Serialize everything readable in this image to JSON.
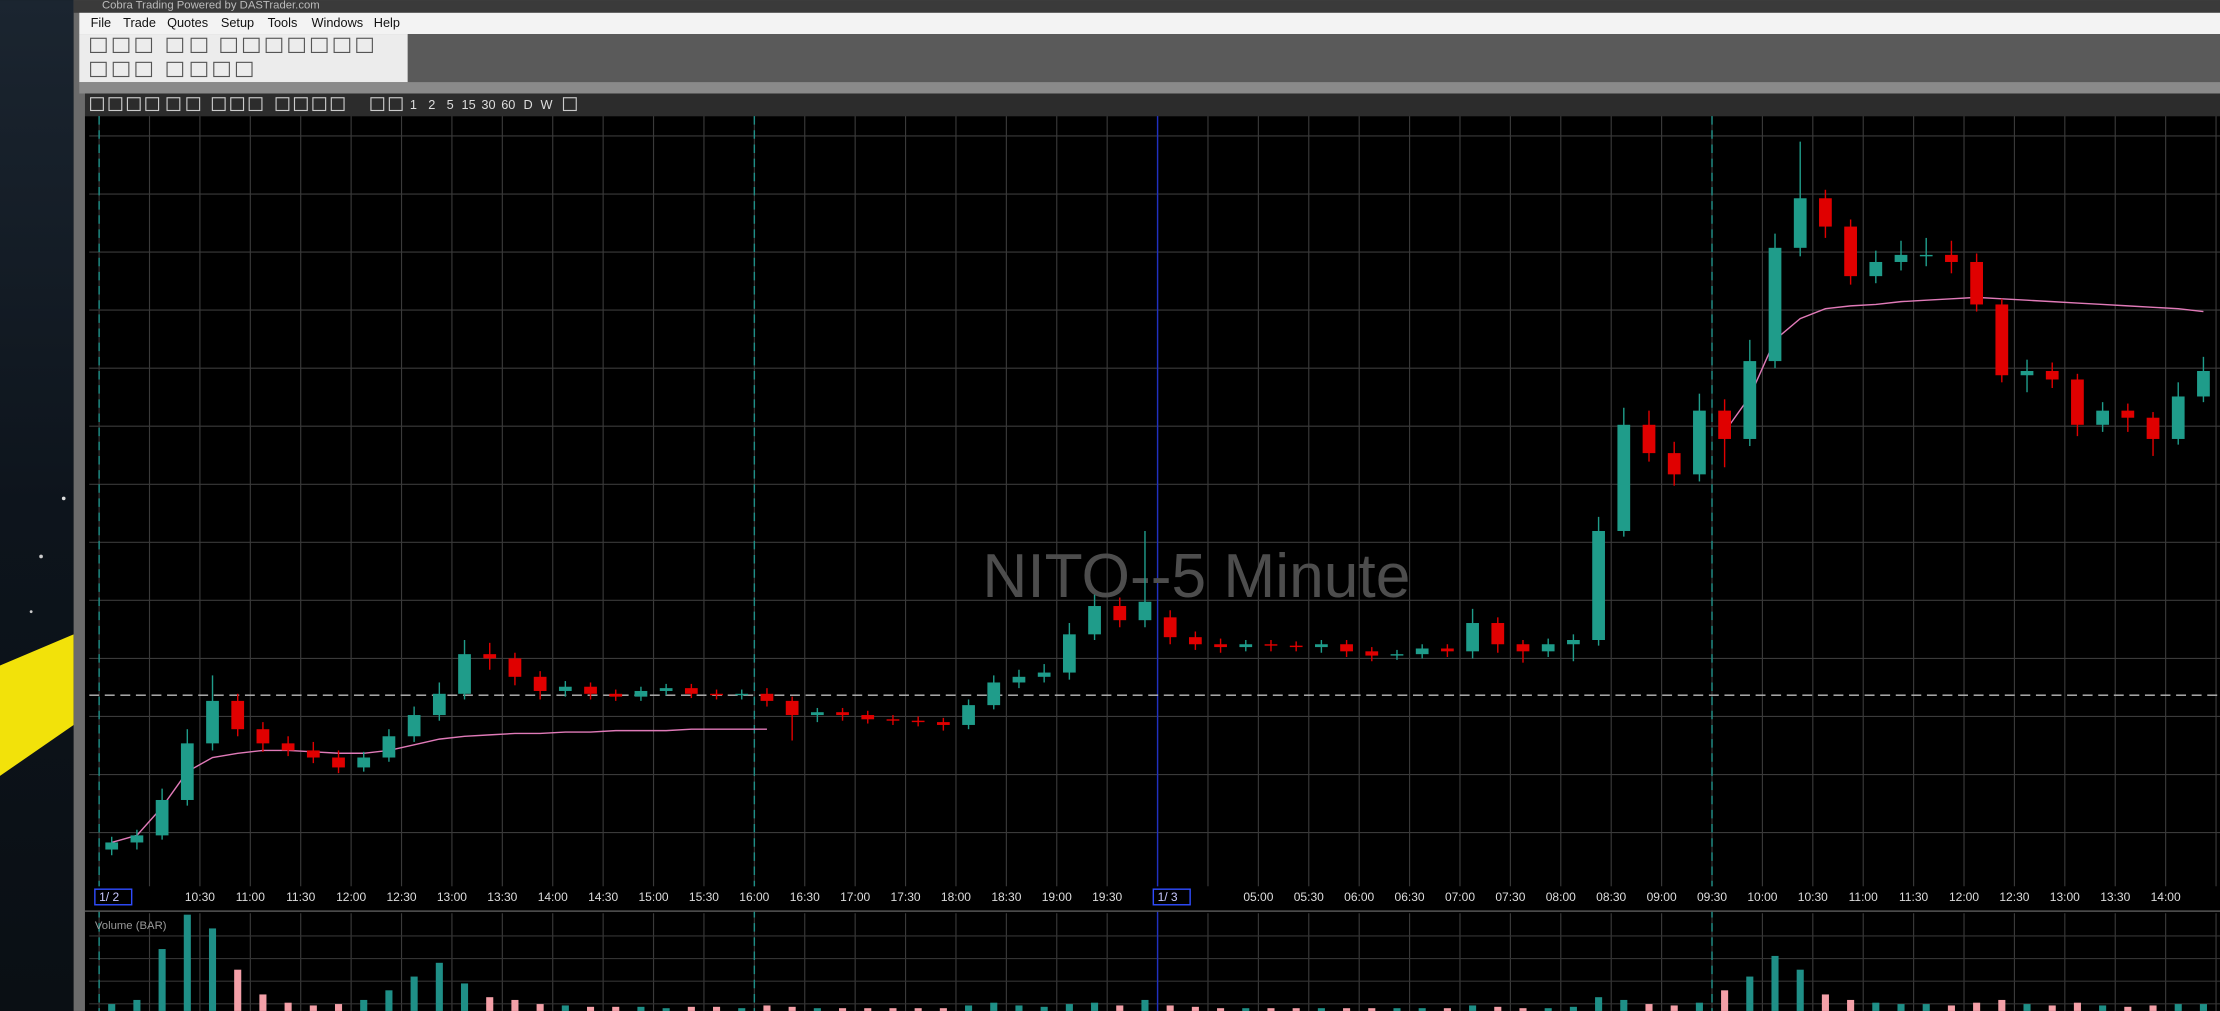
{
  "window": {
    "title": "Cobra Trading Powered by DASTrader.com"
  },
  "menu": [
    "File",
    "Trade",
    "Quotes",
    "Setup",
    "Tools",
    "Windows",
    "Help"
  ],
  "chart_toolbar": {
    "intervals": [
      "1",
      "2",
      "5",
      "15",
      "30",
      "60",
      "D",
      "W"
    ]
  },
  "chart_data": {
    "type": "candlestick",
    "title": "NITO--5 Minute",
    "categories": [
      "1/ 2",
      null,
      null,
      null,
      "10:30",
      null,
      "11:00",
      null,
      "11:30",
      null,
      "12:00",
      null,
      "12:30",
      null,
      "13:00",
      null,
      "13:30",
      null,
      "14:00",
      null,
      "14:30",
      null,
      "15:00",
      null,
      "15:30",
      null,
      "16:00",
      null,
      "16:30",
      null,
      "17:00",
      null,
      "17:30",
      null,
      "18:00",
      null,
      "18:30",
      null,
      "19:00",
      null,
      "19:30",
      null,
      "1/ 3",
      null,
      null,
      null,
      "05:00",
      null,
      "05:30",
      null,
      "06:00",
      null,
      "06:30",
      null,
      "07:00",
      null,
      "07:30",
      null,
      "08:00",
      null,
      "08:30",
      null,
      "09:00",
      null,
      "09:30",
      null,
      "10:00",
      null,
      "10:30",
      null,
      "11:00",
      null,
      "11:30",
      null,
      "12:00",
      null,
      "12:30",
      null,
      "13:00",
      null,
      "13:30",
      null,
      "14:00",
      null
    ],
    "open": [
      26,
      31,
      36,
      61,
      101,
      131,
      111,
      101,
      96,
      91,
      84,
      91,
      106,
      121,
      136,
      164,
      161,
      148,
      138,
      141,
      136,
      134,
      138,
      140,
      136,
      135,
      136,
      131,
      121,
      123,
      121,
      118,
      117,
      116,
      114,
      128,
      144,
      148,
      151,
      178,
      198,
      188,
      190,
      176,
      171,
      169,
      171,
      170,
      169,
      171,
      166,
      163,
      164,
      168,
      166,
      186,
      171,
      166,
      171,
      174,
      251,
      326,
      306,
      291,
      336,
      316,
      371,
      451,
      486,
      466,
      431,
      441,
      446,
      446,
      441,
      411,
      361,
      364,
      358,
      326,
      336,
      331,
      316,
      346
    ],
    "high": [
      35,
      40,
      69,
      111,
      149,
      136,
      116,
      106,
      102,
      96,
      95,
      111,
      127,
      144,
      174,
      172,
      165,
      152,
      145,
      144,
      139,
      141,
      143,
      143,
      139,
      139,
      140,
      134,
      126,
      126,
      124,
      121,
      120,
      119,
      132,
      149,
      153,
      157,
      186,
      206,
      204,
      251,
      195,
      180,
      175,
      174,
      174,
      173,
      174,
      174,
      169,
      167,
      171,
      171,
      196,
      190,
      174,
      175,
      178,
      261,
      338,
      336,
      314,
      348,
      344,
      386,
      461,
      526,
      492,
      471,
      449,
      456,
      458,
      456,
      447,
      415,
      372,
      370,
      362,
      342,
      341,
      335,
      356,
      374
    ],
    "low": [
      22,
      26,
      33,
      57,
      96,
      106,
      95,
      92,
      87,
      80,
      81,
      88,
      102,
      117,
      132,
      153,
      142,
      132,
      134,
      132,
      131,
      131,
      135,
      133,
      132,
      132,
      127,
      103,
      116,
      117,
      115,
      114,
      113,
      110,
      111,
      125,
      140,
      144,
      146,
      174,
      183,
      183,
      171,
      167,
      165,
      166,
      166,
      166,
      165,
      162,
      159,
      160,
      161,
      162,
      161,
      165,
      158,
      162,
      159,
      170,
      247,
      300,
      283,
      286,
      296,
      311,
      366,
      445,
      458,
      425,
      426,
      435,
      438,
      433,
      406,
      356,
      349,
      352,
      318,
      321,
      321,
      304,
      312,
      342
    ],
    "close": [
      31,
      36,
      61,
      101,
      131,
      111,
      101,
      96,
      91,
      84,
      91,
      106,
      121,
      136,
      164,
      161,
      148,
      138,
      141,
      136,
      134,
      138,
      140,
      136,
      135,
      136,
      131,
      121,
      123,
      121,
      118,
      117,
      116,
      114,
      128,
      144,
      148,
      151,
      178,
      198,
      188,
      201,
      176,
      171,
      169,
      171,
      170,
      169,
      171,
      166,
      163,
      164,
      168,
      166,
      186,
      171,
      166,
      171,
      174,
      251,
      326,
      306,
      291,
      336,
      316,
      371,
      451,
      486,
      466,
      431,
      441,
      446,
      446,
      441,
      411,
      361,
      364,
      358,
      326,
      336,
      331,
      316,
      346,
      364
    ],
    "ylim": [
      0,
      544
    ],
    "up_color": "#1f9c8a",
    "down_color": "#e00000",
    "reference_level": 135,
    "vwap": {
      "color": "#e07ab8",
      "values": [
        31,
        36,
        56,
        81,
        91,
        94,
        96,
        96,
        95,
        94,
        94,
        96,
        100,
        104,
        106,
        107,
        108,
        108,
        109,
        109,
        110,
        110,
        110,
        111,
        111,
        111,
        111,
        null,
        null,
        null,
        null,
        null,
        null,
        null,
        null,
        null,
        null,
        null,
        null,
        null,
        null,
        null,
        null,
        null,
        null,
        null,
        null,
        null,
        null,
        null,
        null,
        null,
        null,
        null,
        null,
        null,
        null,
        null,
        null,
        null,
        null,
        null,
        null,
        null,
        321,
        346,
        386,
        401,
        408,
        410,
        411,
        413,
        414,
        415,
        416,
        415,
        414,
        413,
        412,
        411,
        410,
        409,
        408,
        406
      ]
    },
    "volume": {
      "title": "Volume (BAR)",
      "up_color": "#1f8f87",
      "down_color": "#f4a0a8",
      "ylim": [
        0,
        70
      ],
      "values": [
        5,
        8,
        45,
        70,
        60,
        30,
        12,
        6,
        4,
        5,
        8,
        15,
        25,
        35,
        20,
        10,
        8,
        5,
        4,
        3,
        3,
        3,
        2,
        3,
        3,
        2,
        4,
        3,
        2,
        2,
        2,
        2,
        2,
        2,
        4,
        6,
        4,
        3,
        5,
        6,
        4,
        8,
        4,
        3,
        2,
        2,
        2,
        2,
        2,
        2,
        2,
        2,
        2,
        2,
        4,
        3,
        2,
        2,
        3,
        10,
        8,
        5,
        4,
        6,
        15,
        25,
        40,
        30,
        12,
        8,
        6,
        5,
        5,
        4,
        6,
        8,
        5,
        4,
        6,
        4,
        3,
        4,
        5,
        5
      ]
    }
  }
}
